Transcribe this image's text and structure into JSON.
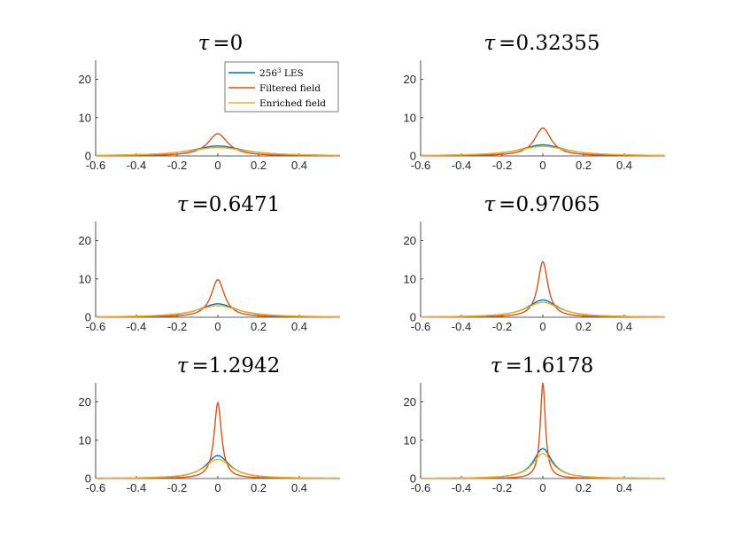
{
  "chart_data": {
    "type": "line",
    "series_styles": [
      {
        "name": "256³ LES",
        "label_base": "256",
        "label_sup": "3",
        "label_rest": " LES",
        "color": "#0072BD"
      },
      {
        "name": "Filtered field",
        "label_base": "Filtered field",
        "label_sup": "",
        "label_rest": "",
        "color": "#D95319"
      },
      {
        "name": "Enriched field",
        "label_base": "Enriched field",
        "label_sup": "",
        "label_rest": "",
        "color": "#EDB120"
      }
    ],
    "legend_location": "top-right of first panel",
    "xlim": [
      -0.6,
      0.6
    ],
    "ylim": [
      0,
      25
    ],
    "xticks": [
      -0.6,
      -0.4,
      -0.2,
      0,
      0.2,
      0.4
    ],
    "xtick_labels": [
      "-0.6",
      "-0.4",
      "-0.2",
      "0",
      "0.2",
      "0.4"
    ],
    "yticks": [
      0,
      10,
      20
    ],
    "ytick_labels": [
      "0",
      "10",
      "20"
    ],
    "panels": [
      {
        "title_symbol": "τ",
        "title_value": "=0",
        "peaks": {
          "256³ LES": 2.6,
          "Filtered field": 5.8,
          "Enriched field": 2.2
        },
        "widths": {
          "256³ LES": 0.15,
          "Filtered field": 0.06,
          "Enriched field": 0.17
        }
      },
      {
        "title_symbol": "τ",
        "title_value": "=0.32355",
        "peaks": {
          "256³ LES": 2.9,
          "Filtered field": 7.3,
          "Enriched field": 2.5
        },
        "widths": {
          "256³ LES": 0.13,
          "Filtered field": 0.05,
          "Enriched field": 0.15
        }
      },
      {
        "title_symbol": "τ",
        "title_value": "=0.6471",
        "peaks": {
          "256³ LES": 3.5,
          "Filtered field": 9.8,
          "Enriched field": 3.0
        },
        "widths": {
          "256³ LES": 0.11,
          "Filtered field": 0.04,
          "Enriched field": 0.13
        }
      },
      {
        "title_symbol": "τ",
        "title_value": "=0.97065",
        "peaks": {
          "256³ LES": 4.5,
          "Filtered field": 14.5,
          "Enriched field": 3.9
        },
        "widths": {
          "256³ LES": 0.09,
          "Filtered field": 0.03,
          "Enriched field": 0.1
        }
      },
      {
        "title_symbol": "τ",
        "title_value": "=1.2942",
        "peaks": {
          "256³ LES": 6.0,
          "Filtered field": 19.8,
          "Enriched field": 5.0
        },
        "widths": {
          "256³ LES": 0.07,
          "Filtered field": 0.022,
          "Enriched field": 0.08
        }
      },
      {
        "title_symbol": "τ",
        "title_value": "=1.6178",
        "peaks": {
          "256³ LES": 7.8,
          "Filtered field": 25.0,
          "Enriched field": 6.5
        },
        "widths": {
          "256³ LES": 0.055,
          "Filtered field": 0.015,
          "Enriched field": 0.06
        }
      }
    ]
  }
}
